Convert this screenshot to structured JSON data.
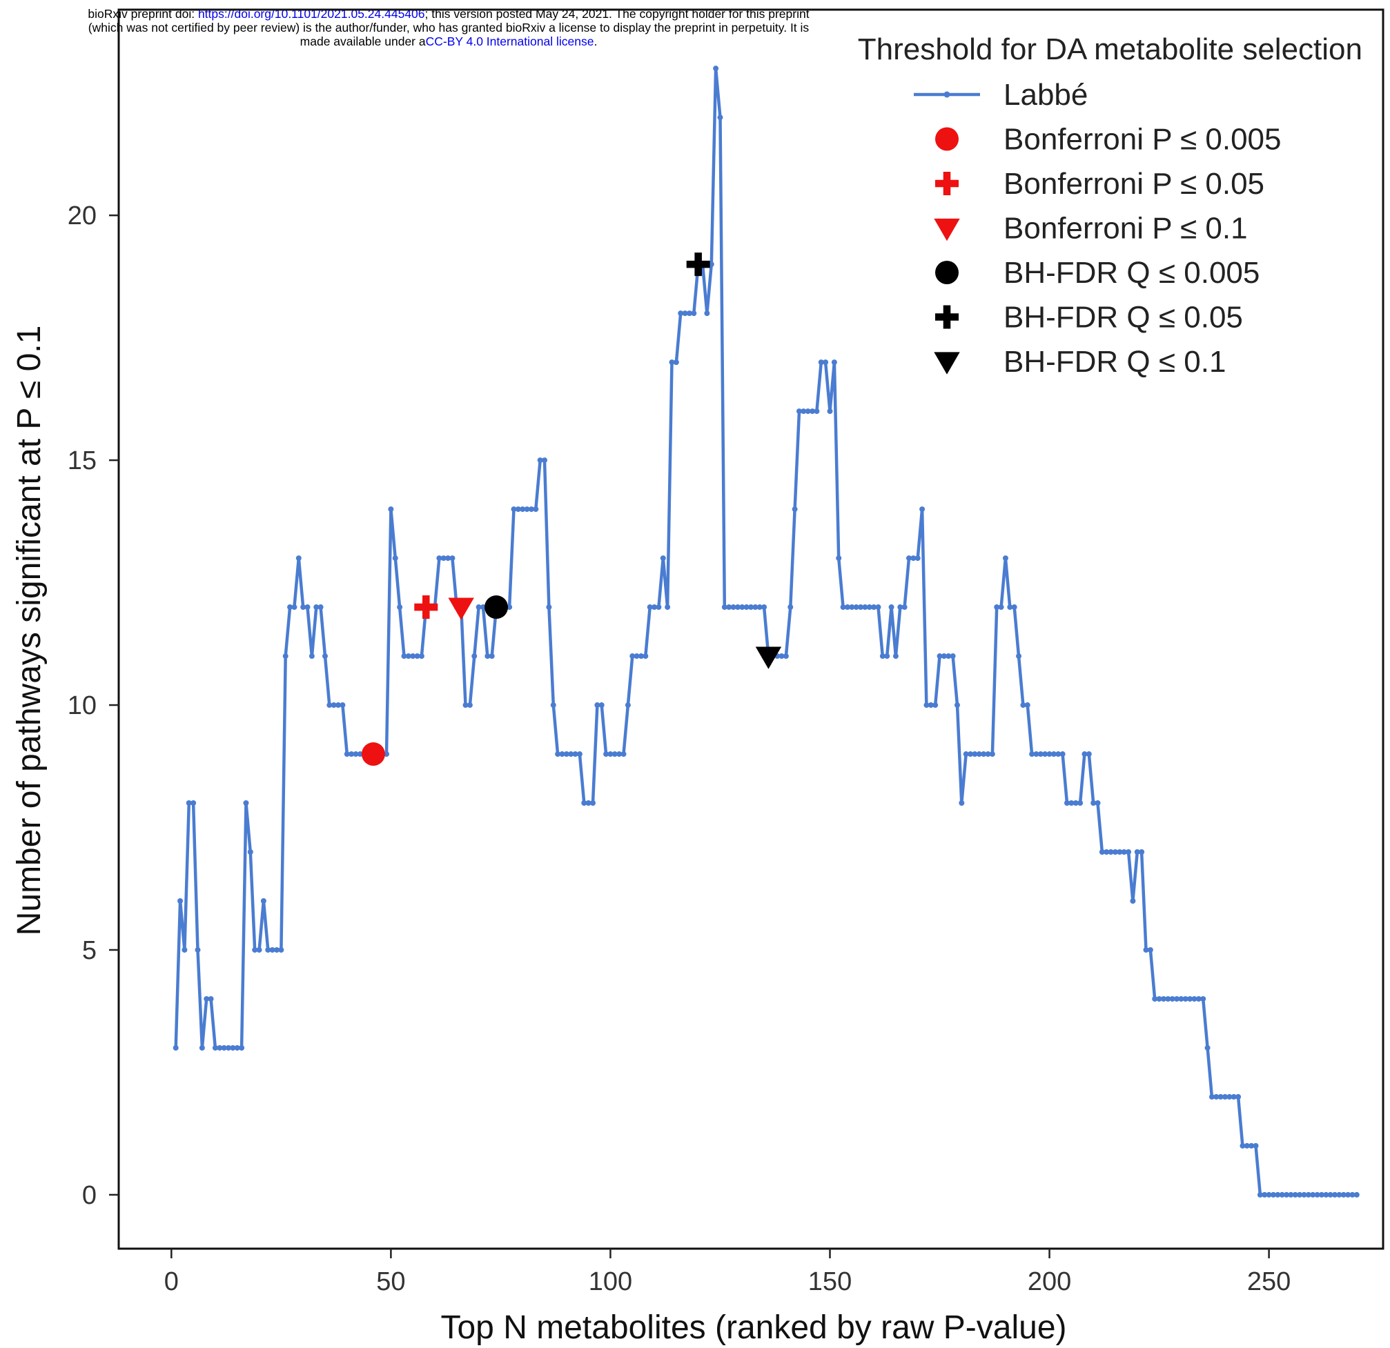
{
  "preprint": {
    "line1_a": "bioRxiv preprint doi: ",
    "line1_link": "https://doi.org/10.1101/2021.05.24.445406",
    "line1_b": "; this version posted May 24, 2021. The copyright holder for this preprint",
    "line2": "(which was not certified by peer review) is the author/funder, who has granted bioRxiv a license to display the preprint in perpetuity. It is",
    "line3_a": "made available under a",
    "line3_link": "CC-BY 4.0 International license",
    "line3_b": "."
  },
  "chart_data": {
    "type": "line",
    "xlabel": "Top N metabolites (ranked by raw P-value)",
    "ylabel": "Number of pathways significant at P ≤ 0.1",
    "xlim": [
      -12,
      276
    ],
    "ylim": [
      -1.1,
      24.2
    ],
    "xticks": [
      0,
      50,
      100,
      150,
      200,
      250
    ],
    "yticks": [
      0,
      5,
      10,
      15,
      20
    ],
    "grid": false,
    "legend": {
      "title": "Threshold for DA metabolite selection",
      "placement": "top-right"
    },
    "series": [
      {
        "name": "Labbé",
        "color": "#4a7cd1",
        "marker": "dot",
        "points": [
          [
            1,
            3
          ],
          [
            2,
            6
          ],
          [
            3,
            5
          ],
          [
            4,
            8
          ],
          [
            5,
            8
          ],
          [
            6,
            5
          ],
          [
            7,
            3
          ],
          [
            8,
            4
          ],
          [
            9,
            4
          ],
          [
            10,
            3
          ],
          [
            11,
            3
          ],
          [
            12,
            3
          ],
          [
            13,
            3
          ],
          [
            14,
            3
          ],
          [
            15,
            3
          ],
          [
            16,
            3
          ],
          [
            17,
            8
          ],
          [
            18,
            7
          ],
          [
            19,
            5
          ],
          [
            20,
            5
          ],
          [
            21,
            6
          ],
          [
            22,
            5
          ],
          [
            23,
            5
          ],
          [
            24,
            5
          ],
          [
            25,
            5
          ],
          [
            26,
            11
          ],
          [
            27,
            12
          ],
          [
            28,
            12
          ],
          [
            29,
            13
          ],
          [
            30,
            12
          ],
          [
            31,
            12
          ],
          [
            32,
            11
          ],
          [
            33,
            12
          ],
          [
            34,
            12
          ],
          [
            35,
            11
          ],
          [
            36,
            10
          ],
          [
            37,
            10
          ],
          [
            38,
            10
          ],
          [
            39,
            10
          ],
          [
            40,
            9
          ],
          [
            41,
            9
          ],
          [
            42,
            9
          ],
          [
            43,
            9
          ],
          [
            44,
            9
          ],
          [
            45,
            9
          ],
          [
            46,
            9
          ],
          [
            47,
            9
          ],
          [
            48,
            9
          ],
          [
            49,
            9
          ],
          [
            50,
            14
          ],
          [
            51,
            13
          ],
          [
            52,
            12
          ],
          [
            53,
            11
          ],
          [
            54,
            11
          ],
          [
            55,
            11
          ],
          [
            56,
            11
          ],
          [
            57,
            11
          ],
          [
            58,
            12
          ],
          [
            59,
            12
          ],
          [
            60,
            12
          ],
          [
            61,
            13
          ],
          [
            62,
            13
          ],
          [
            63,
            13
          ],
          [
            64,
            13
          ],
          [
            65,
            12
          ],
          [
            66,
            12
          ],
          [
            67,
            10
          ],
          [
            68,
            10
          ],
          [
            69,
            11
          ],
          [
            70,
            12
          ],
          [
            71,
            12
          ],
          [
            72,
            11
          ],
          [
            73,
            11
          ],
          [
            74,
            12
          ],
          [
            75,
            12
          ],
          [
            76,
            12
          ],
          [
            77,
            12
          ],
          [
            78,
            14
          ],
          [
            79,
            14
          ],
          [
            80,
            14
          ],
          [
            81,
            14
          ],
          [
            82,
            14
          ],
          [
            83,
            14
          ],
          [
            84,
            15
          ],
          [
            85,
            15
          ],
          [
            86,
            12
          ],
          [
            87,
            10
          ],
          [
            88,
            9
          ],
          [
            89,
            9
          ],
          [
            90,
            9
          ],
          [
            91,
            9
          ],
          [
            92,
            9
          ],
          [
            93,
            9
          ],
          [
            94,
            8
          ],
          [
            95,
            8
          ],
          [
            96,
            8
          ],
          [
            97,
            10
          ],
          [
            98,
            10
          ],
          [
            99,
            9
          ],
          [
            100,
            9
          ],
          [
            101,
            9
          ],
          [
            102,
            9
          ],
          [
            103,
            9
          ],
          [
            104,
            10
          ],
          [
            105,
            11
          ],
          [
            106,
            11
          ],
          [
            107,
            11
          ],
          [
            108,
            11
          ],
          [
            109,
            12
          ],
          [
            110,
            12
          ],
          [
            111,
            12
          ],
          [
            112,
            13
          ],
          [
            113,
            12
          ],
          [
            114,
            17
          ],
          [
            115,
            17
          ],
          [
            116,
            18
          ],
          [
            117,
            18
          ],
          [
            118,
            18
          ],
          [
            119,
            18
          ],
          [
            120,
            19
          ],
          [
            121,
            19
          ],
          [
            122,
            18
          ],
          [
            123,
            19
          ],
          [
            124,
            23
          ],
          [
            125,
            22
          ],
          [
            126,
            12
          ],
          [
            127,
            12
          ],
          [
            128,
            12
          ],
          [
            129,
            12
          ],
          [
            130,
            12
          ],
          [
            131,
            12
          ],
          [
            132,
            12
          ],
          [
            133,
            12
          ],
          [
            134,
            12
          ],
          [
            135,
            12
          ],
          [
            136,
            11
          ],
          [
            137,
            11
          ],
          [
            138,
            11
          ],
          [
            139,
            11
          ],
          [
            140,
            11
          ],
          [
            141,
            12
          ],
          [
            142,
            14
          ],
          [
            143,
            16
          ],
          [
            144,
            16
          ],
          [
            145,
            16
          ],
          [
            146,
            16
          ],
          [
            147,
            16
          ],
          [
            148,
            17
          ],
          [
            149,
            17
          ],
          [
            150,
            16
          ],
          [
            151,
            17
          ],
          [
            152,
            13
          ],
          [
            153,
            12
          ],
          [
            154,
            12
          ],
          [
            155,
            12
          ],
          [
            156,
            12
          ],
          [
            157,
            12
          ],
          [
            158,
            12
          ],
          [
            159,
            12
          ],
          [
            160,
            12
          ],
          [
            161,
            12
          ],
          [
            162,
            11
          ],
          [
            163,
            11
          ],
          [
            164,
            12
          ],
          [
            165,
            11
          ],
          [
            166,
            12
          ],
          [
            167,
            12
          ],
          [
            168,
            13
          ],
          [
            169,
            13
          ],
          [
            170,
            13
          ],
          [
            171,
            14
          ],
          [
            172,
            10
          ],
          [
            173,
            10
          ],
          [
            174,
            10
          ],
          [
            175,
            11
          ],
          [
            176,
            11
          ],
          [
            177,
            11
          ],
          [
            178,
            11
          ],
          [
            179,
            10
          ],
          [
            180,
            8
          ],
          [
            181,
            9
          ],
          [
            182,
            9
          ],
          [
            183,
            9
          ],
          [
            184,
            9
          ],
          [
            185,
            9
          ],
          [
            186,
            9
          ],
          [
            187,
            9
          ],
          [
            188,
            12
          ],
          [
            189,
            12
          ],
          [
            190,
            13
          ],
          [
            191,
            12
          ],
          [
            192,
            12
          ],
          [
            193,
            11
          ],
          [
            194,
            10
          ],
          [
            195,
            10
          ],
          [
            196,
            9
          ],
          [
            197,
            9
          ],
          [
            198,
            9
          ],
          [
            199,
            9
          ],
          [
            200,
            9
          ],
          [
            201,
            9
          ],
          [
            202,
            9
          ],
          [
            203,
            9
          ],
          [
            204,
            8
          ],
          [
            205,
            8
          ],
          [
            206,
            8
          ],
          [
            207,
            8
          ],
          [
            208,
            9
          ],
          [
            209,
            9
          ],
          [
            210,
            8
          ],
          [
            211,
            8
          ],
          [
            212,
            7
          ],
          [
            213,
            7
          ],
          [
            214,
            7
          ],
          [
            215,
            7
          ],
          [
            216,
            7
          ],
          [
            217,
            7
          ],
          [
            218,
            7
          ],
          [
            219,
            6
          ],
          [
            220,
            7
          ],
          [
            221,
            7
          ],
          [
            222,
            5
          ],
          [
            223,
            5
          ],
          [
            224,
            4
          ],
          [
            225,
            4
          ],
          [
            226,
            4
          ],
          [
            227,
            4
          ],
          [
            228,
            4
          ],
          [
            229,
            4
          ],
          [
            230,
            4
          ],
          [
            231,
            4
          ],
          [
            232,
            4
          ],
          [
            233,
            4
          ],
          [
            234,
            4
          ],
          [
            235,
            4
          ],
          [
            236,
            3
          ],
          [
            237,
            2
          ],
          [
            238,
            2
          ],
          [
            239,
            2
          ],
          [
            240,
            2
          ],
          [
            241,
            2
          ],
          [
            242,
            2
          ],
          [
            243,
            2
          ],
          [
            244,
            1
          ],
          [
            245,
            1
          ],
          [
            246,
            1
          ],
          [
            247,
            1
          ],
          [
            248,
            0
          ],
          [
            249,
            0
          ],
          [
            250,
            0
          ],
          [
            251,
            0
          ],
          [
            252,
            0
          ],
          [
            253,
            0
          ],
          [
            254,
            0
          ],
          [
            255,
            0
          ],
          [
            256,
            0
          ],
          [
            257,
            0
          ],
          [
            258,
            0
          ],
          [
            259,
            0
          ],
          [
            260,
            0
          ],
          [
            261,
            0
          ],
          [
            262,
            0
          ],
          [
            263,
            0
          ],
          [
            264,
            0
          ],
          [
            265,
            0
          ],
          [
            266,
            0
          ],
          [
            267,
            0
          ],
          [
            268,
            0
          ],
          [
            269,
            0
          ],
          [
            270,
            0
          ]
        ]
      }
    ],
    "thresholds": [
      {
        "name": "Bonferroni P ≤ 0.005",
        "x": 46,
        "y": 9,
        "marker": "circle",
        "color": "#ee1111"
      },
      {
        "name": "Bonferroni P ≤ 0.05",
        "x": 58,
        "y": 12,
        "marker": "plus",
        "color": "#ee1111"
      },
      {
        "name": "Bonferroni P ≤ 0.1",
        "x": 66,
        "y": 12,
        "marker": "triangle-down",
        "color": "#ee1111"
      },
      {
        "name": "BH-FDR Q ≤ 0.005",
        "x": 74,
        "y": 12,
        "marker": "circle",
        "color": "#000000"
      },
      {
        "name": "BH-FDR Q ≤ 0.05",
        "x": 120,
        "y": 19,
        "marker": "plus",
        "color": "#000000"
      },
      {
        "name": "BH-FDR Q ≤ 0.1",
        "x": 136,
        "y": 11,
        "marker": "triangle-down",
        "color": "#000000"
      }
    ]
  }
}
